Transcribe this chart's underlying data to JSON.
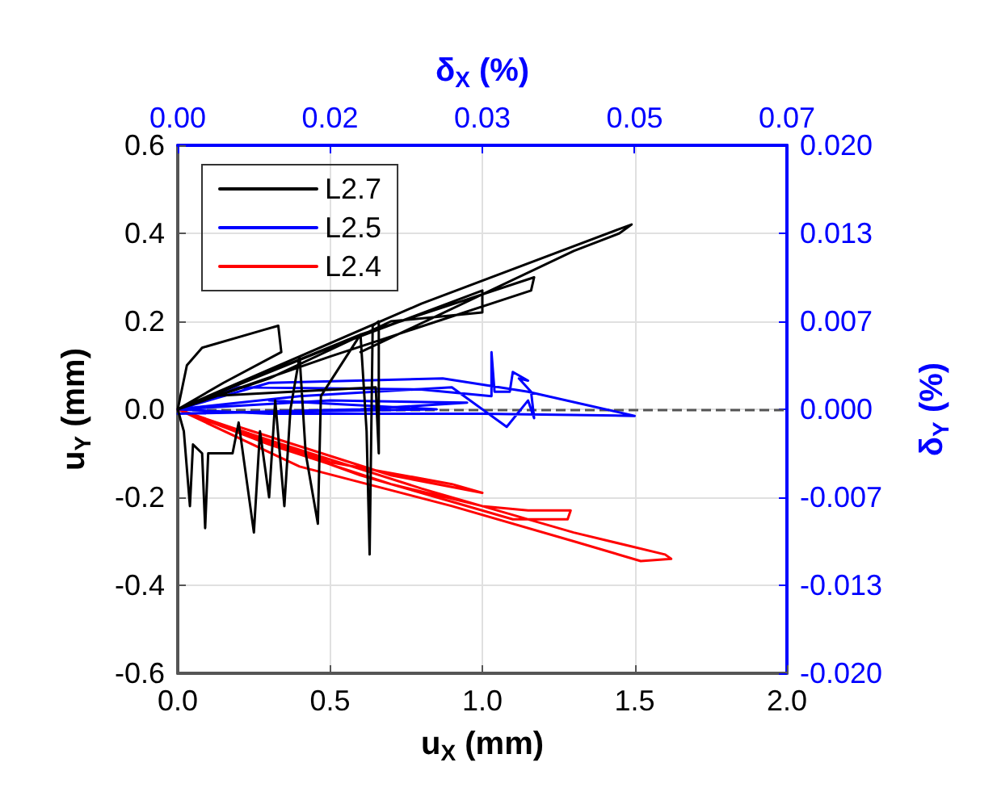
{
  "chart_data": {
    "type": "line",
    "xlabel": "u$_{X}$ (mm)",
    "ylabel": "u$_{Y}$ (mm)",
    "x2label": "δ$_{X}$ (%)",
    "y2label": "δ$_{Y}$ (%)",
    "xlim": [
      0,
      2
    ],
    "xticks": [
      {
        "value": 0,
        "label": "0.0"
      },
      {
        "value": 0.5,
        "label": "0.5"
      },
      {
        "value": 1,
        "label": "1.0"
      },
      {
        "value": 1.5,
        "label": "1.5"
      },
      {
        "value": 2,
        "label": "2.0"
      }
    ],
    "ylim": [
      -0.6,
      0.6
    ],
    "yticks": [
      {
        "value": -0.6,
        "label": "-0.6"
      },
      {
        "value": -0.4,
        "label": "-0.4"
      },
      {
        "value": -0.2,
        "label": "-0.2"
      },
      {
        "value": 0,
        "label": "0.0"
      },
      {
        "value": 0.2,
        "label": "0.2"
      },
      {
        "value": 0.4,
        "label": "0.4"
      },
      {
        "value": 0.6,
        "label": "0.6"
      }
    ],
    "x2lim": [
      0,
      0.066667
    ],
    "x2ticks": [
      {
        "value": 0,
        "label": "0.00"
      },
      {
        "value": 0.016667,
        "label": "0.02"
      },
      {
        "value": 0.033333,
        "label": "0.03"
      },
      {
        "value": 0.05,
        "label": "0.05"
      },
      {
        "value": 0.066667,
        "label": "0.07"
      }
    ],
    "y2lim": [
      -0.02,
      0.02
    ],
    "y2ticks": [
      {
        "value": -0.02,
        "label": "-0.020"
      },
      {
        "value": -0.013333,
        "label": "-0.013"
      },
      {
        "value": -0.006667,
        "label": "-0.007"
      },
      {
        "value": 0,
        "label": "0.000"
      },
      {
        "value": 0.006667,
        "label": "0.007"
      },
      {
        "value": 0.013333,
        "label": "0.013"
      },
      {
        "value": 0.02,
        "label": "0.020"
      }
    ],
    "grid": true,
    "legend": "top left",
    "marker": "none",
    "line_style": "solid",
    "ref_lines": [
      {
        "axis": "y",
        "value": 0,
        "color": "#555555",
        "line_style": "dashed"
      }
    ],
    "series": [
      {
        "name": "L2.7",
        "color": "#000000",
        "x": [
          0,
          0.03,
          0.08,
          0.28,
          0.33,
          0.34,
          0.15,
          0,
          0.02,
          0.04,
          0.05,
          0.08,
          0.09,
          0.1,
          0.18,
          0.2,
          0.25,
          0.27,
          0.3,
          0.32,
          0.35,
          0.37,
          0.4,
          0.42,
          0.46,
          0.47,
          0.6,
          0.62,
          0.63,
          0.64,
          0.66,
          0.66,
          0.65,
          0.1,
          0,
          0.5,
          1.0,
          1.0,
          0.7,
          0.3,
          0,
          0.6,
          1.17,
          1.16,
          0.5,
          0,
          0.8,
          1.45,
          1.49,
          1.45,
          1.3,
          0.6
        ],
        "values": [
          0,
          0.1,
          0.14,
          0.18,
          0.19,
          0.13,
          0.06,
          0,
          -0.05,
          -0.22,
          -0.08,
          -0.1,
          -0.27,
          -0.1,
          -0.1,
          -0.03,
          -0.28,
          -0.05,
          -0.2,
          0.02,
          -0.22,
          0,
          0.12,
          -0.1,
          -0.26,
          0.03,
          0.17,
          -0.05,
          -0.33,
          0.19,
          0.2,
          -0.1,
          0.05,
          0.03,
          0,
          0.14,
          0.27,
          0.22,
          0.2,
          0.07,
          0,
          0.17,
          0.3,
          0.27,
          0.12,
          0,
          0.24,
          0.41,
          0.42,
          0.4,
          0.36,
          0.13
        ]
      },
      {
        "name": "L2.5",
        "color": "#0000ff",
        "x": [
          0,
          0.3,
          0.87,
          1.15,
          1.5,
          1.0,
          0.3,
          0,
          0.2,
          0.8,
          1.03,
          1.03,
          1.04,
          1.09,
          1.1,
          1.15,
          1.12,
          1.16,
          1.17,
          1.15,
          1.08,
          0.9,
          0.4,
          0,
          0.5,
          0.95,
          0.6,
          0,
          0.4,
          0.85,
          0.3
        ],
        "values": [
          0,
          0.06,
          0.07,
          0.04,
          -0.015,
          -0.01,
          -0.01,
          0,
          0.05,
          0.045,
          0.03,
          0.13,
          0.04,
          0.04,
          0.085,
          0.065,
          0.07,
          0.04,
          -0.02,
          0.02,
          -0.04,
          0.05,
          0.03,
          0,
          0.02,
          0.015,
          0,
          -0.01,
          -0.005,
          0,
          0.02
        ]
      },
      {
        "name": "L2.4",
        "color": "#ff0000",
        "x": [
          0,
          0.3,
          0.7,
          1.0,
          1.15,
          1.29,
          1.28,
          1.1,
          0.6,
          0.2,
          0,
          0.4,
          0.9,
          1.3,
          1.52,
          1.62,
          1.6,
          1.3,
          0.8,
          0.3,
          0,
          0.5,
          0.9,
          1.0,
          0.7,
          0.2
        ],
        "values": [
          0,
          -0.08,
          -0.17,
          -0.22,
          -0.23,
          -0.23,
          -0.25,
          -0.25,
          -0.15,
          -0.05,
          0,
          -0.13,
          -0.22,
          -0.3,
          -0.345,
          -0.34,
          -0.33,
          -0.28,
          -0.18,
          -0.07,
          0,
          -0.12,
          -0.17,
          -0.19,
          -0.15,
          -0.04
        ]
      }
    ]
  }
}
